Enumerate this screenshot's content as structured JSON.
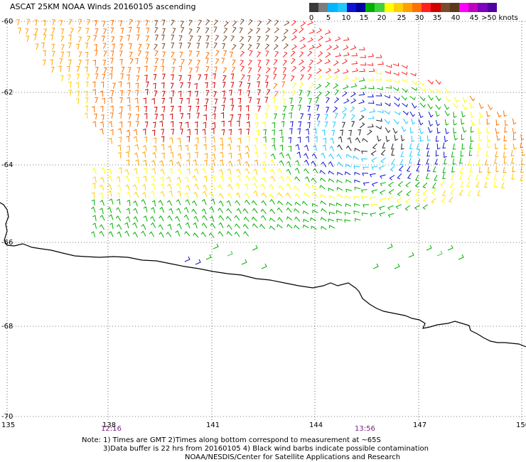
{
  "title": "ASCAT 25KM NOAA Winds 20160105 ascending",
  "legend": {
    "labels": [
      "0",
      "5",
      "10",
      "15",
      "20",
      "25",
      "30",
      "35",
      "40",
      "45",
      ">50 knots"
    ],
    "colors": [
      "#3a3a3a",
      "#7d7d7d",
      "#00b4ff",
      "#1ec8ff",
      "#1010d0",
      "#0000a0",
      "#00b000",
      "#40d040",
      "#ffff00",
      "#ffd000",
      "#ffa000",
      "#ff7000",
      "#ff2020",
      "#d00000",
      "#7a4a2a",
      "#5a3a1a",
      "#ff00ff",
      "#c000c0",
      "#8000c0",
      "#5000a0"
    ]
  },
  "axes": {
    "x_ticks": [
      "135",
      "138",
      "141",
      "144",
      "147",
      "150"
    ],
    "y_ticks": [
      "-60",
      "-62",
      "-64",
      "-66",
      "-68",
      "-70"
    ]
  },
  "times": [
    "12:16",
    "13:56"
  ],
  "notes": [
    "Note: 1) Times are GMT 2)Times along bottom correspond to measurement at ~65S",
    "3)Data buffer is 22 hrs from 20160105 4) Black wind barbs indicate possible contamination",
    "NOAA/NESDIS/Center for Satellite Applications and Research"
  ]
}
